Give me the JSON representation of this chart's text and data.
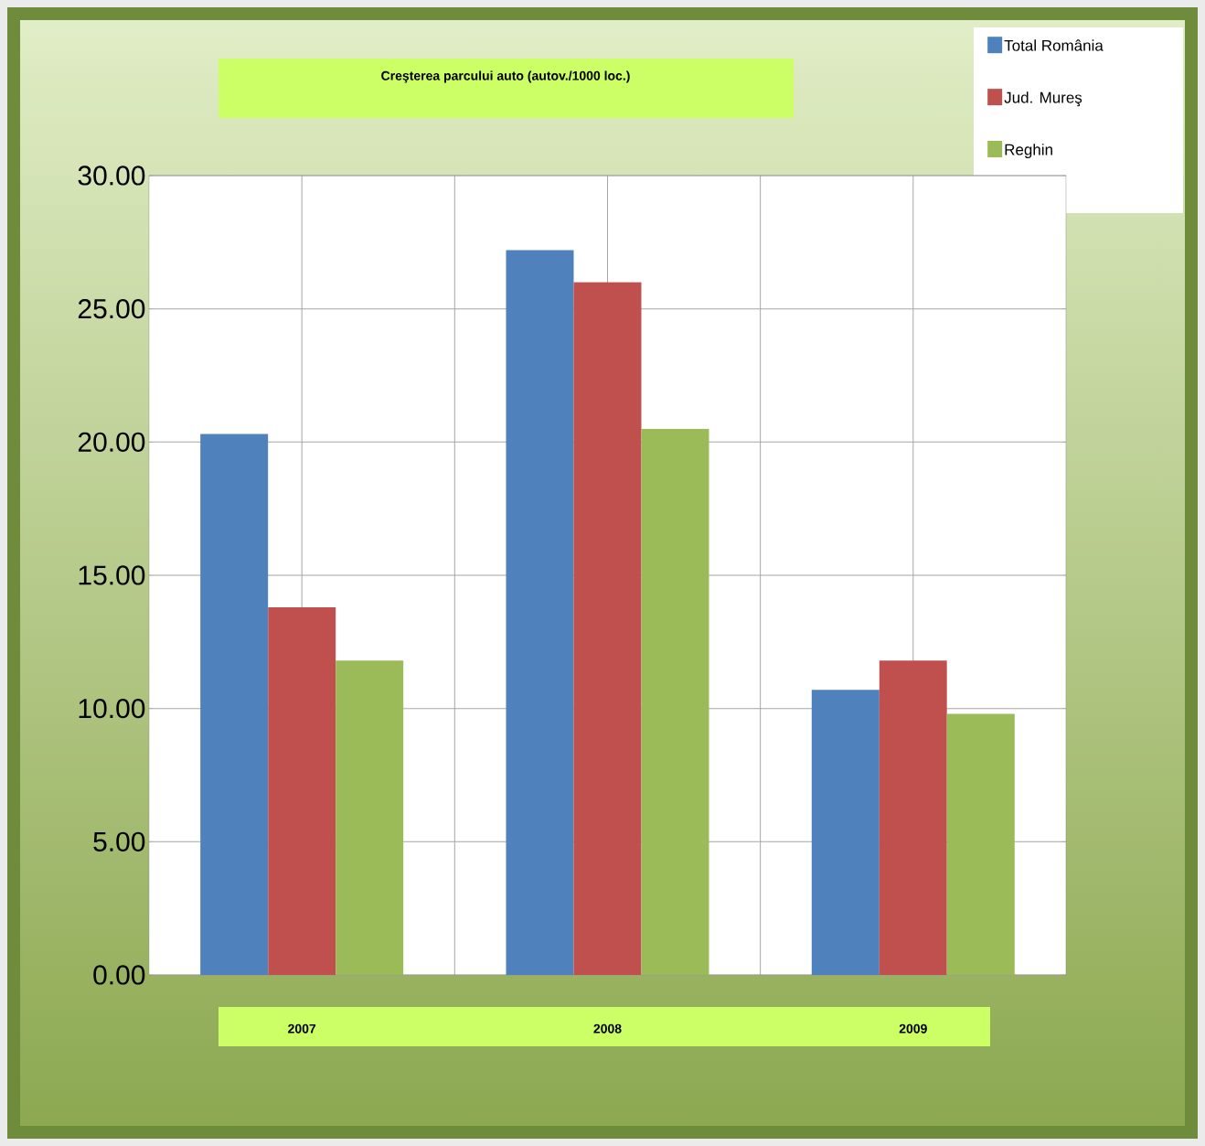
{
  "chart_data": {
    "type": "bar",
    "title": "Creşterea parcului auto (autov./1000 loc.)",
    "categories": [
      "2007",
      "2008",
      "2009"
    ],
    "series": [
      {
        "name": "Total România",
        "color": "#4f81bd",
        "values": [
          20.3,
          27.2,
          10.7
        ]
      },
      {
        "name": "Jud. Mureş",
        "color": "#c0504d",
        "values": [
          13.8,
          26.0,
          11.8
        ]
      },
      {
        "name": "Reghin",
        "color": "#9bbb59",
        "values": [
          11.8,
          20.5,
          9.8
        ]
      }
    ],
    "ylim": [
      0,
      30
    ],
    "yticks": [
      {
        "value": 0,
        "label": "0.00"
      },
      {
        "value": 5,
        "label": "5.00"
      },
      {
        "value": 10,
        "label": "10.00"
      },
      {
        "value": 15,
        "label": "15.00"
      },
      {
        "value": 20,
        "label": "20.00"
      },
      {
        "value": 25,
        "label": "25.00"
      },
      {
        "value": 30,
        "label": "30.00"
      }
    ],
    "grid": true,
    "legend": "top right"
  }
}
